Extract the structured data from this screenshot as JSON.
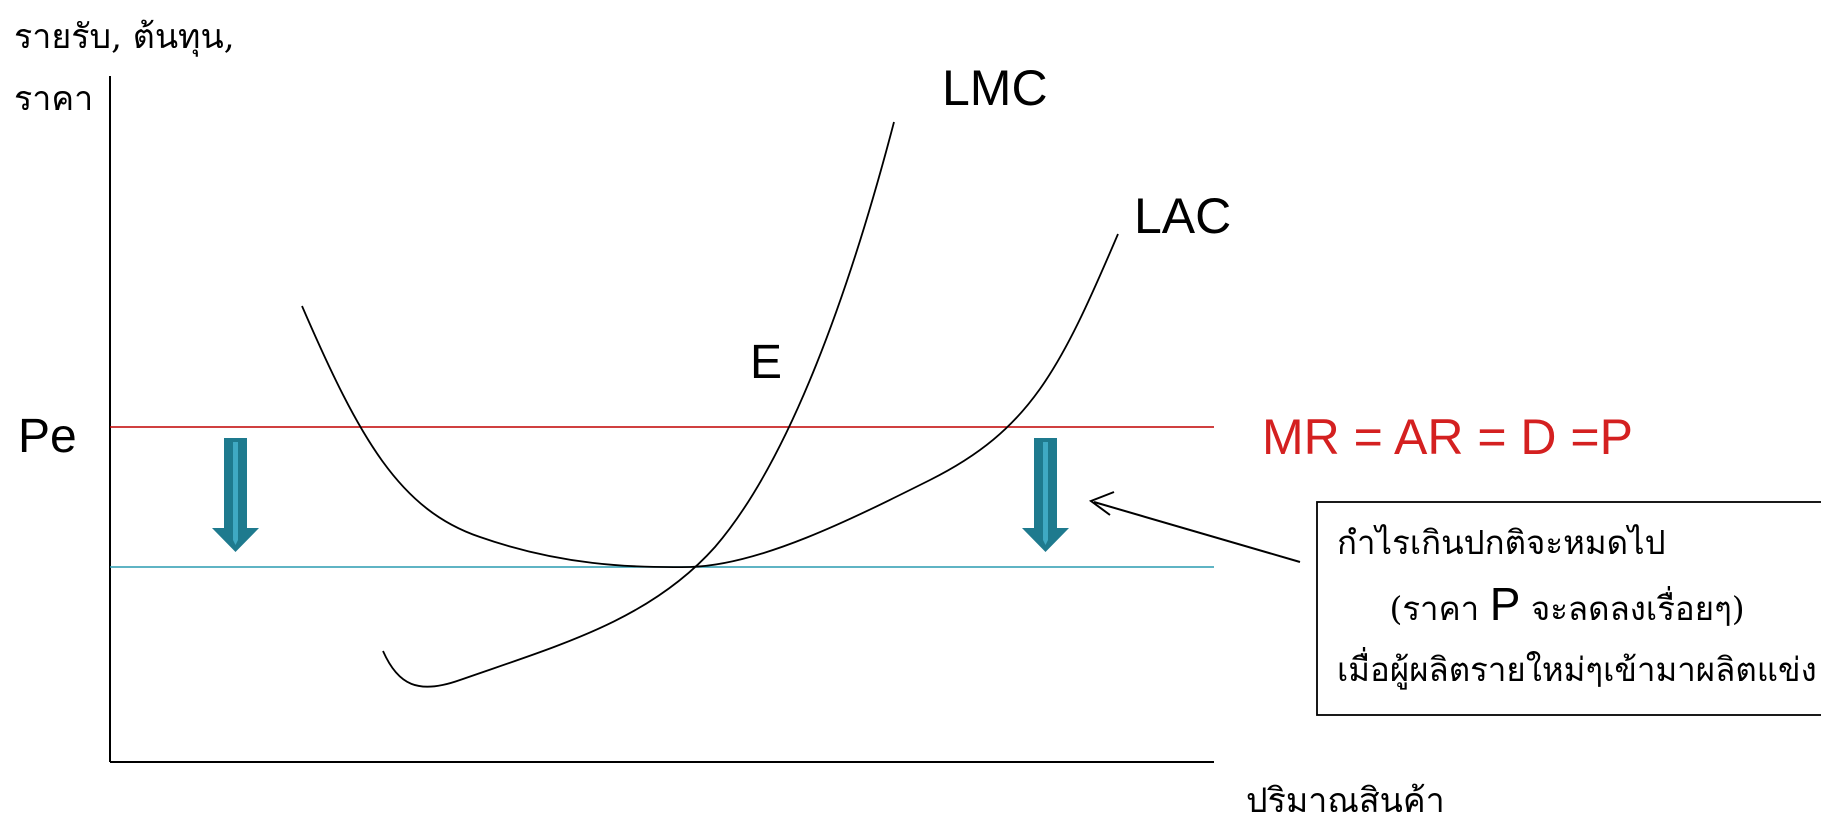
{
  "y_axis_label_line1": "รายรับ, ต้นทุน,",
  "y_axis_label_line2": "ราคา",
  "x_axis_label": "ปริมาณสินค้า",
  "price_label": "Pe",
  "lmc_label": "LMC",
  "lac_label": "LAC",
  "equilibrium_label": "E",
  "demand_label": "MR = AR = D =P",
  "note": {
    "line1": "กำไรเกินปกติจะหมดไป",
    "line2_prefix": "(ราคา ",
    "line2_p": "P",
    "line2_suffix": " จะลดลงเรื่อยๆ)",
    "line3": "เมื่อผู้ผลิตรายใหม่ๆเข้ามาผลิตแข่ง"
  },
  "colors": {
    "axis": "#000000",
    "curve": "#000000",
    "demand_line": "#c00000",
    "demand_text": "#d42020",
    "lower_price_line": "#2a9cb0",
    "arrow_fill": "#1e7a8e",
    "arrow_inner": "#3fa9c3"
  },
  "icons": [
    "down-arrow-icon",
    "pointer-arrow-icon"
  ]
}
